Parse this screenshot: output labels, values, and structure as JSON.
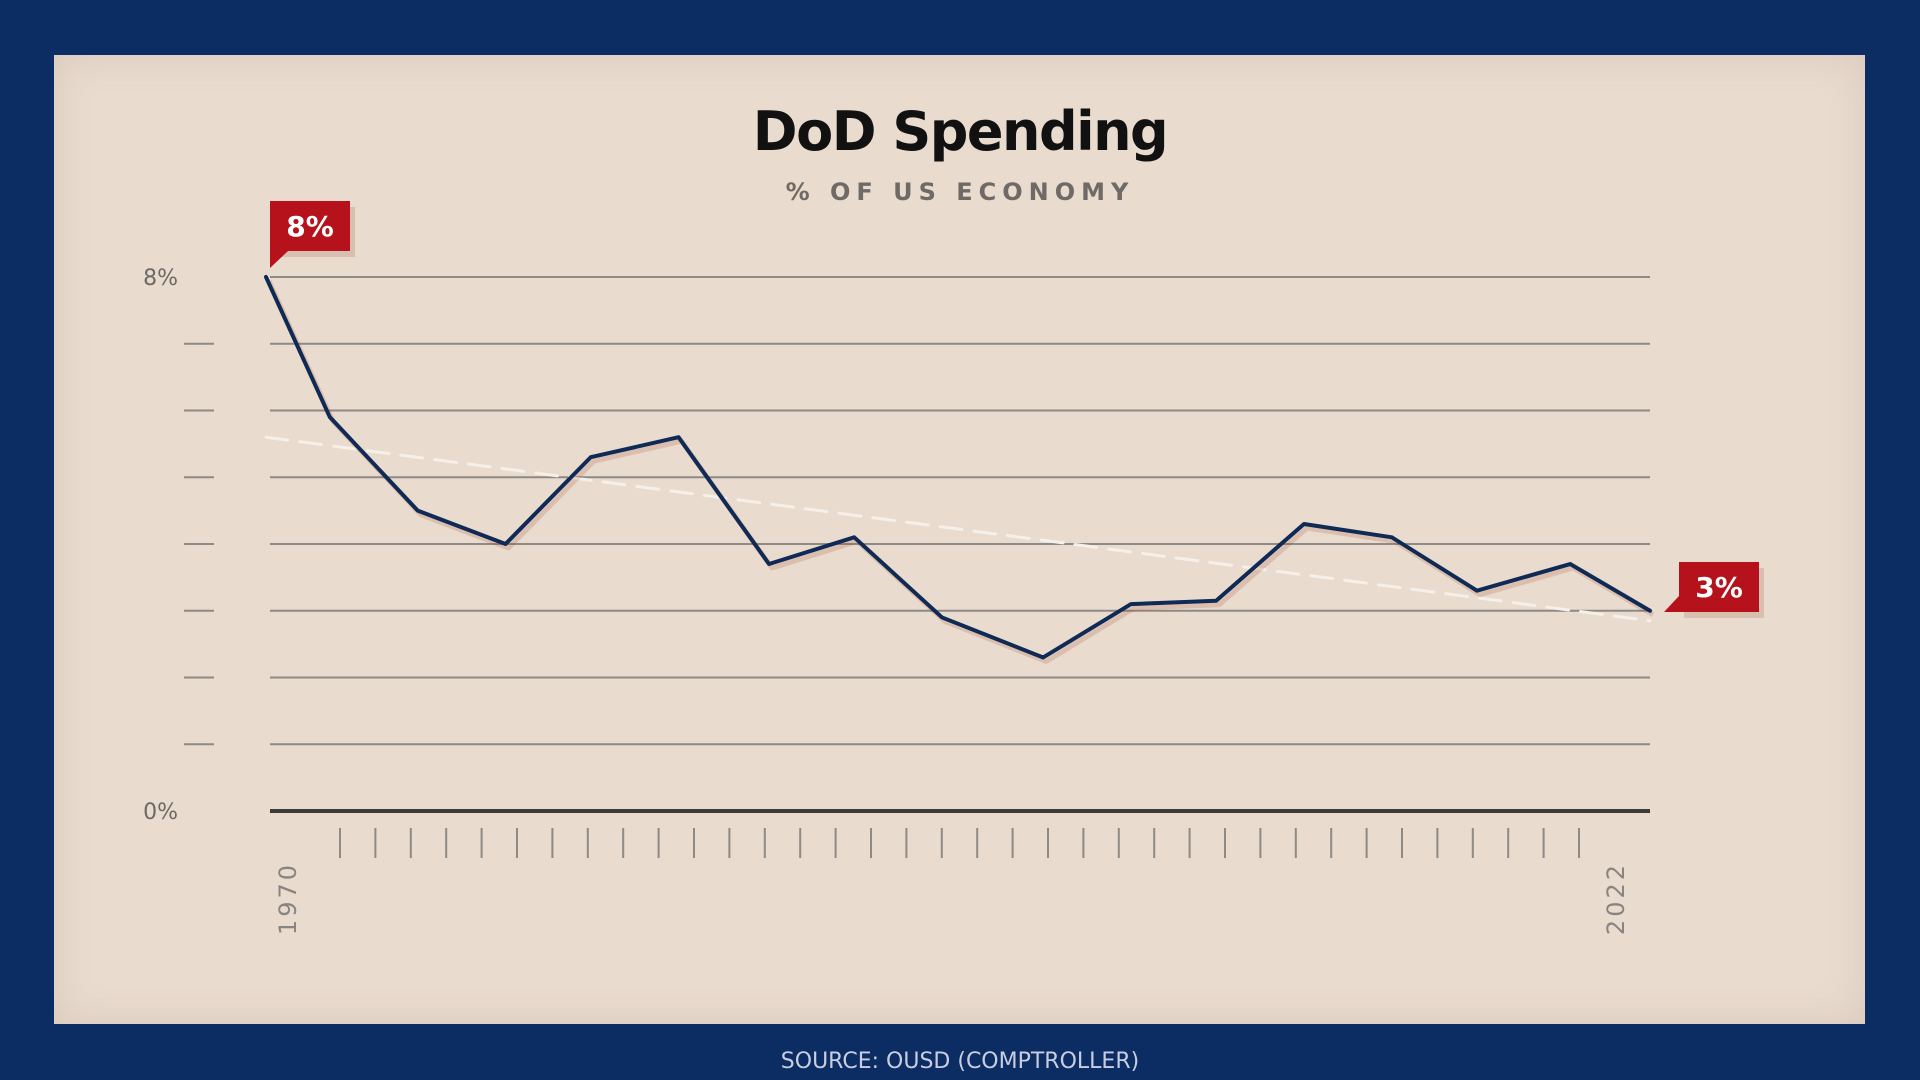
{
  "chart_data": {
    "type": "line",
    "title": "DoD Spending",
    "subtitle": "% OF US ECONOMY",
    "source": "SOURCE: OUSD (COMPTROLLER)",
    "xlim": [
      1970,
      2022
    ],
    "ylim": [
      0,
      8
    ],
    "y_tick_labels": [
      {
        "value": 8,
        "label": "8%"
      },
      {
        "value": 0,
        "label": "0%"
      }
    ],
    "x_tick_labels": [
      {
        "value": 1970,
        "label": "1970"
      },
      {
        "value": 2022,
        "label": "2022"
      }
    ],
    "grid": true,
    "series": [
      {
        "x": [
          1970,
          1972.4,
          1975.7,
          1979,
          1982.2,
          1985.5,
          1988.9,
          1992.1,
          1995.4,
          1999.2,
          2002.5,
          2005.7,
          2009,
          2012.3,
          2015.5,
          2019,
          2022
        ],
        "values": [
          8.0,
          5.9,
          4.5,
          4.0,
          5.3,
          5.6,
          3.7,
          4.1,
          2.9,
          2.3,
          3.1,
          3.15,
          4.3,
          4.1,
          3.3,
          3.7,
          3.0
        ],
        "color": "#0f2a55"
      }
    ],
    "trendline": {
      "x": [
        1970,
        2022
      ],
      "values": [
        5.6,
        2.85
      ],
      "color": "#f5f0ea",
      "style": "dashed"
    },
    "annotations": [
      {
        "label": "8%",
        "x": 1970,
        "y": 8.0,
        "color": "#b5121b"
      },
      {
        "label": "3%",
        "x": 2022,
        "y": 3.0,
        "color": "#b5121b"
      }
    ]
  }
}
